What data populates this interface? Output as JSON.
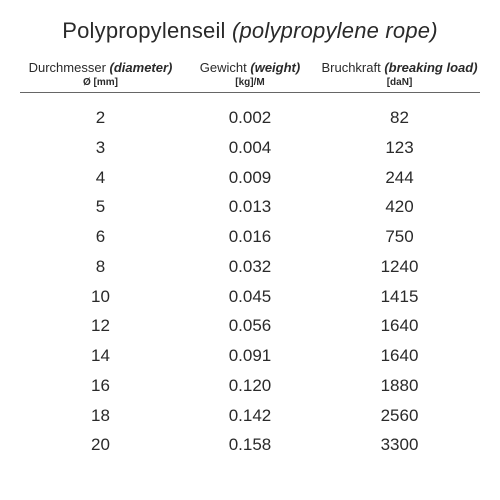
{
  "title": {
    "de": "Polypropylenseil",
    "en": "(polypropylene rope)"
  },
  "columns": [
    {
      "main_de": "Durchmesser",
      "main_en": "(diameter)",
      "sub": "Ø [mm]"
    },
    {
      "main_de": "Gewicht",
      "main_en": "(weight)",
      "sub": "[kg]/M"
    },
    {
      "main_de": "Bruchkraft",
      "main_en": "(breaking load)",
      "sub": "[daN]"
    }
  ],
  "rows": [
    {
      "diameter": "2",
      "weight": "0.002",
      "load": "82"
    },
    {
      "diameter": "3",
      "weight": "0.004",
      "load": "123"
    },
    {
      "diameter": "4",
      "weight": "0.009",
      "load": "244"
    },
    {
      "diameter": "5",
      "weight": "0.013",
      "load": "420"
    },
    {
      "diameter": "6",
      "weight": "0.016",
      "load": "750"
    },
    {
      "diameter": "8",
      "weight": "0.032",
      "load": "1240"
    },
    {
      "diameter": "10",
      "weight": "0.045",
      "load": "1415"
    },
    {
      "diameter": "12",
      "weight": "0.056",
      "load": "1640"
    },
    {
      "diameter": "14",
      "weight": "0.091",
      "load": "1640"
    },
    {
      "diameter": "16",
      "weight": "0.120",
      "load": "1880"
    },
    {
      "diameter": "18",
      "weight": "0.142",
      "load": "2560"
    },
    {
      "diameter": "20",
      "weight": "0.158",
      "load": "3300"
    }
  ],
  "styling": {
    "type": "table",
    "background_color": "#ffffff",
    "text_color": "#2a2a2a",
    "divider_color": "#666666",
    "title_fontsize": 22,
    "header_main_fontsize": 13,
    "header_sub_fontsize": 10,
    "data_fontsize": 17,
    "column_widths_pct": [
      35,
      30,
      35
    ],
    "column_alignment": [
      "center",
      "center",
      "center"
    ],
    "row_line_height": 1.75
  }
}
